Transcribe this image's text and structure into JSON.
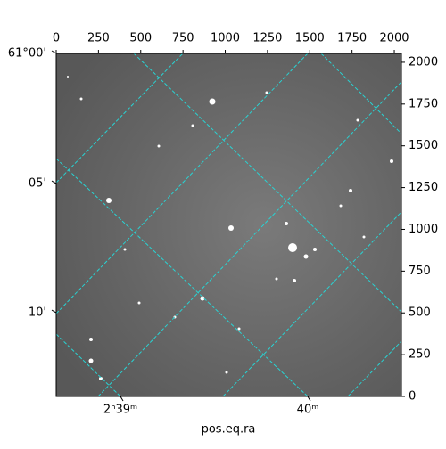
{
  "chart_data": {
    "type": "image",
    "xlabel": "pos.eq.ra",
    "xlim": [
      0,
      2042
    ],
    "ylim": [
      0,
      2053
    ],
    "xticks": [
      0,
      250,
      500,
      750,
      1000,
      1250,
      1500,
      1750,
      2000
    ],
    "yticks": [
      0,
      250,
      500,
      750,
      1000,
      1250,
      1500,
      1750,
      2000
    ],
    "world_xticks": [
      {
        "value": 380,
        "label": "2ʰ39ᵐ"
      },
      {
        "value": 1488,
        "label": "40ᵐ"
      }
    ],
    "world_yticks": [
      {
        "value": 501,
        "label": "10'"
      },
      {
        "value": 1274,
        "label": "05'"
      },
      {
        "value": 2053,
        "label": "61°00'"
      }
    ]
  }
}
